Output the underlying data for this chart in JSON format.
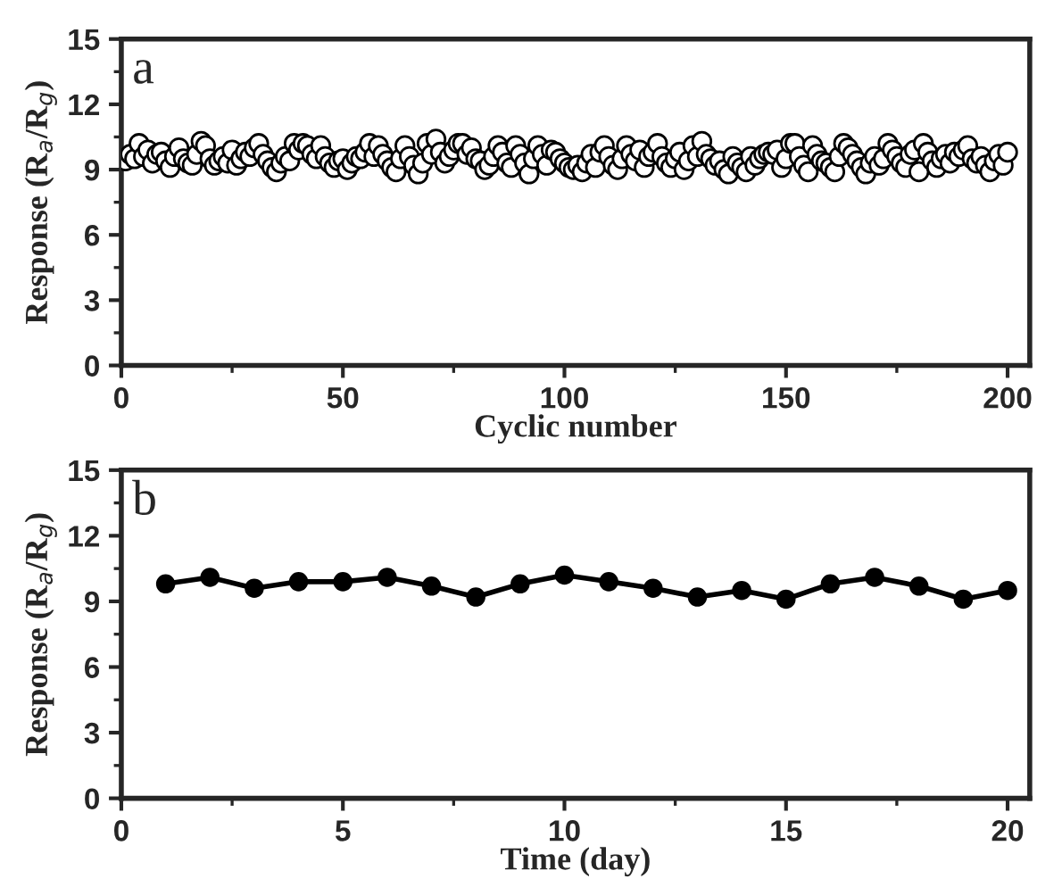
{
  "chart_data": [
    {
      "type": "scatter",
      "annotations": [
        "a"
      ],
      "xlabel": "Cyclic number",
      "ylabel": "Response (R$_{a}$/R$_{g}$)",
      "xlim": [
        0,
        205
      ],
      "xticks": [
        0,
        50,
        100,
        150,
        200
      ],
      "ylim": [
        0,
        15
      ],
      "yticks": [
        0,
        3,
        6,
        9,
        12,
        15
      ],
      "marker": "circle",
      "grid": false,
      "x": [
        1,
        2,
        3,
        4,
        5,
        6,
        7,
        8,
        9,
        10,
        11,
        12,
        13,
        14,
        15,
        16,
        17,
        18,
        19,
        20,
        21,
        22,
        23,
        24,
        25,
        26,
        27,
        28,
        29,
        30,
        31,
        32,
        33,
        34,
        35,
        36,
        37,
        38,
        39,
        40,
        41,
        42,
        43,
        44,
        45,
        46,
        47,
        48,
        49,
        50,
        51,
        52,
        53,
        54,
        55,
        56,
        57,
        58,
        59,
        60,
        61,
        62,
        63,
        64,
        65,
        66,
        67,
        68,
        69,
        70,
        71,
        72,
        73,
        74,
        75,
        76,
        77,
        78,
        79,
        80,
        81,
        82,
        83,
        84,
        85,
        86,
        87,
        88,
        89,
        90,
        91,
        92,
        93,
        94,
        95,
        96,
        97,
        98,
        99,
        100,
        101,
        102,
        103,
        104,
        105,
        106,
        107,
        108,
        109,
        110,
        111,
        112,
        113,
        114,
        115,
        116,
        117,
        118,
        119,
        120,
        121,
        122,
        123,
        124,
        125,
        126,
        127,
        128,
        129,
        130,
        131,
        132,
        133,
        134,
        135,
        136,
        137,
        138,
        139,
        140,
        141,
        142,
        143,
        144,
        145,
        146,
        147,
        148,
        149,
        150,
        151,
        152,
        153,
        154,
        155,
        156,
        157,
        158,
        159,
        160,
        161,
        162,
        163,
        164,
        165,
        166,
        167,
        168,
        169,
        170,
        171,
        172,
        173,
        174,
        175,
        176,
        177,
        178,
        179,
        180,
        181,
        182,
        183,
        184,
        185,
        186,
        187,
        188,
        189,
        190,
        191,
        192,
        193,
        194,
        195,
        196,
        197,
        198,
        199,
        200
      ],
      "series": [
        {
          "color": "#000000",
          "values": [
            9.4,
            9.7,
            9.5,
            10.2,
            9.6,
            9.9,
            9.3,
            9.7,
            9.8,
            9.4,
            9.1,
            9.6,
            10.0,
            9.5,
            9.3,
            9.2,
            9.7,
            10.3,
            10.1,
            9.5,
            9.2,
            9.4,
            9.6,
            9.3,
            9.9,
            9.2,
            9.5,
            9.8,
            9.6,
            10.0,
            10.2,
            9.7,
            9.4,
            9.1,
            8.9,
            9.3,
            9.6,
            9.4,
            10.2,
            9.9,
            10.2,
            10.1,
            9.7,
            9.5,
            10.1,
            9.6,
            9.3,
            9.1,
            9.4,
            9.5,
            9.0,
            9.3,
            9.6,
            9.5,
            9.8,
            10.2,
            9.6,
            10.1,
            9.7,
            9.4,
            9.1,
            8.9,
            9.5,
            10.1,
            9.6,
            9.2,
            8.8,
            9.3,
            10.2,
            9.7,
            10.4,
            9.8,
            9.3,
            9.6,
            9.9,
            10.2,
            10.2,
            9.7,
            10.0,
            9.5,
            9.4,
            9.0,
            9.2,
            9.6,
            10.1,
            9.8,
            9.3,
            9.1,
            10.1,
            9.7,
            9.3,
            8.8,
            9.5,
            10.1,
            9.7,
            9.2,
            9.9,
            9.8,
            9.5,
            9.3,
            9.1,
            9.0,
            9.2,
            8.9,
            9.3,
            9.7,
            9.1,
            9.8,
            10.1,
            9.6,
            9.2,
            9.0,
            9.5,
            10.1,
            9.7,
            9.4,
            9.9,
            9.1,
            9.6,
            9.8,
            10.2,
            9.6,
            9.3,
            9.1,
            9.5,
            9.8,
            9.0,
            9.4,
            10.1,
            9.6,
            10.3,
            9.7,
            9.5,
            9.2,
            9.4,
            9.0,
            8.8,
            9.6,
            9.3,
            9.1,
            8.9,
            9.6,
            9.2,
            9.5,
            9.7,
            9.8,
            9.7,
            9.9,
            9.1,
            9.5,
            10.2,
            10.2,
            9.6,
            9.2,
            8.9,
            10.1,
            9.7,
            9.4,
            9.3,
            9.1,
            8.9,
            9.6,
            10.2,
            10.0,
            9.7,
            9.4,
            9.1,
            8.8,
            9.3,
            9.6,
            9.2,
            9.5,
            10.2,
            9.9,
            9.6,
            9.3,
            9.1,
            9.7,
            9.9,
            8.9,
            10.2,
            9.8,
            9.4,
            9.1,
            9.5,
            9.7,
            9.3,
            9.8,
            9.6,
            9.9,
            10.1,
            9.5,
            9.3,
            9.6,
            9.2,
            8.9,
            9.4,
            9.7,
            9.2,
            9.8
          ]
        }
      ]
    },
    {
      "type": "line",
      "annotations": [
        "b"
      ],
      "xlabel": "Time (day)",
      "ylabel": "Response (R$_{a}$/R$_{g}$)",
      "xlim": [
        0,
        20.5
      ],
      "xticks": [
        0,
        5,
        10,
        15,
        20
      ],
      "ylim": [
        0,
        15
      ],
      "yticks": [
        0,
        3,
        6,
        9,
        12,
        15
      ],
      "marker": "circle",
      "line_style": "solid",
      "grid": false,
      "x": [
        1,
        2,
        3,
        4,
        5,
        6,
        7,
        8,
        9,
        10,
        11,
        12,
        13,
        14,
        15,
        16,
        17,
        18,
        19,
        20
      ],
      "series": [
        {
          "color": "#000000",
          "values": [
            9.8,
            10.1,
            9.6,
            9.9,
            9.9,
            10.1,
            9.7,
            9.2,
            9.8,
            10.2,
            9.9,
            9.6,
            9.2,
            9.5,
            9.1,
            9.8,
            10.1,
            9.7,
            9.1,
            9.5
          ]
        }
      ]
    }
  ]
}
